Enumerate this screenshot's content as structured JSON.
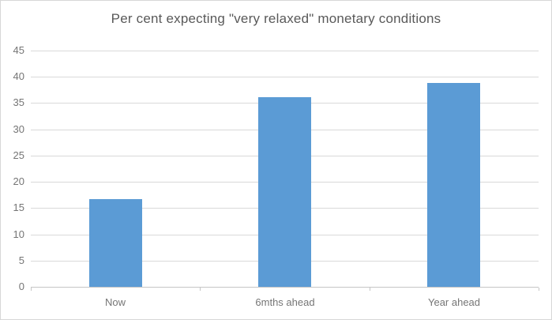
{
  "chart_data": {
    "type": "bar",
    "title": "Per cent expecting \"very relaxed\" monetary conditions",
    "categories": [
      "Now",
      "6mths ahead",
      "Year ahead"
    ],
    "values": [
      16.7,
      36.1,
      38.9
    ],
    "xlabel": "",
    "ylabel": "",
    "ylim": [
      0,
      45
    ],
    "ytick_step": 5,
    "yticks": [
      0,
      5,
      10,
      15,
      20,
      25,
      30,
      35,
      40,
      45
    ],
    "grid": "horizontal",
    "legend": "none"
  },
  "colors": {
    "bar": "#5b9bd5",
    "gridline": "#d9d9d9",
    "axis": "#c6c6c6",
    "title_text": "#595959",
    "label_text": "#757575",
    "frame_border": "#d7d7d7",
    "background": "#ffffff"
  }
}
